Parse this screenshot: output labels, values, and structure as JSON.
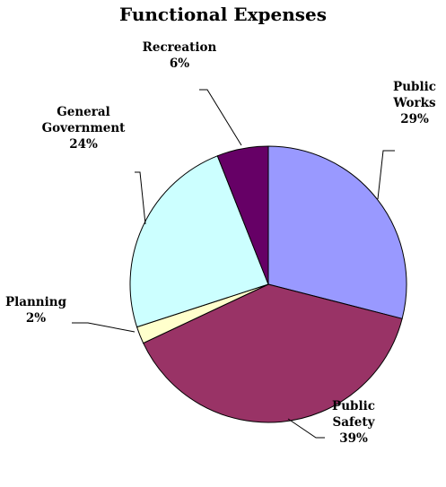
{
  "chart_data": {
    "type": "pie",
    "title": "Functional Expenses",
    "slices": [
      {
        "name": "Public Works",
        "name_lines": [
          "Public",
          "Works"
        ],
        "value": 29,
        "pct_label": "29%",
        "color": "#9999ff"
      },
      {
        "name": "Public Safety",
        "name_lines": [
          "Public",
          "Safety"
        ],
        "value": 39,
        "pct_label": "39%",
        "color": "#993366"
      },
      {
        "name": "Planning",
        "name_lines": [
          "Planning"
        ],
        "value": 2,
        "pct_label": "2%",
        "color": "#ffffcc"
      },
      {
        "name": "General Government",
        "name_lines": [
          "General",
          "Government"
        ],
        "value": 24,
        "pct_label": "24%",
        "color": "#ccffff"
      },
      {
        "name": "Recreation",
        "name_lines": [
          "Recreation"
        ],
        "value": 6,
        "pct_label": "6%",
        "color": "#660066"
      }
    ],
    "start_angle": "12 o'clock",
    "direction": "clockwise",
    "legend": "none",
    "labels": "outside with leader lines"
  }
}
